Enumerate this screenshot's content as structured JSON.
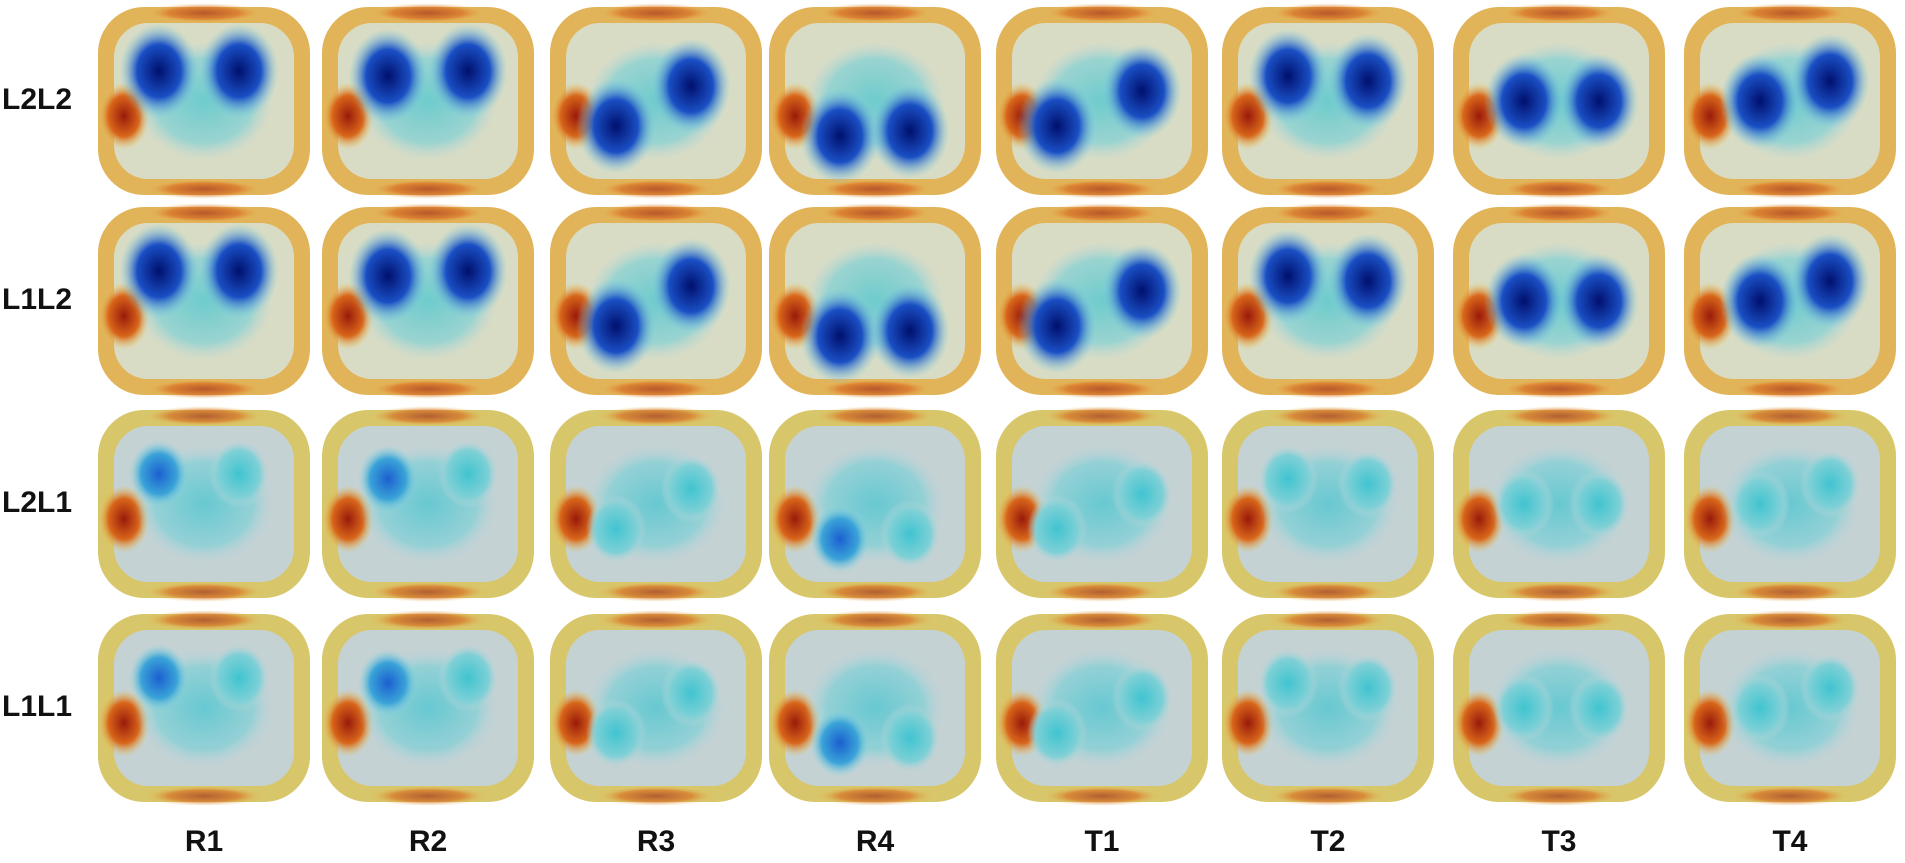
{
  "row_labels": [
    "L2L2",
    "L1L2",
    "L2L1",
    "L1L1"
  ],
  "column_labels": [
    "R1",
    "R2",
    "R3",
    "R4",
    "T1",
    "T2",
    "T3",
    "T4"
  ]
}
